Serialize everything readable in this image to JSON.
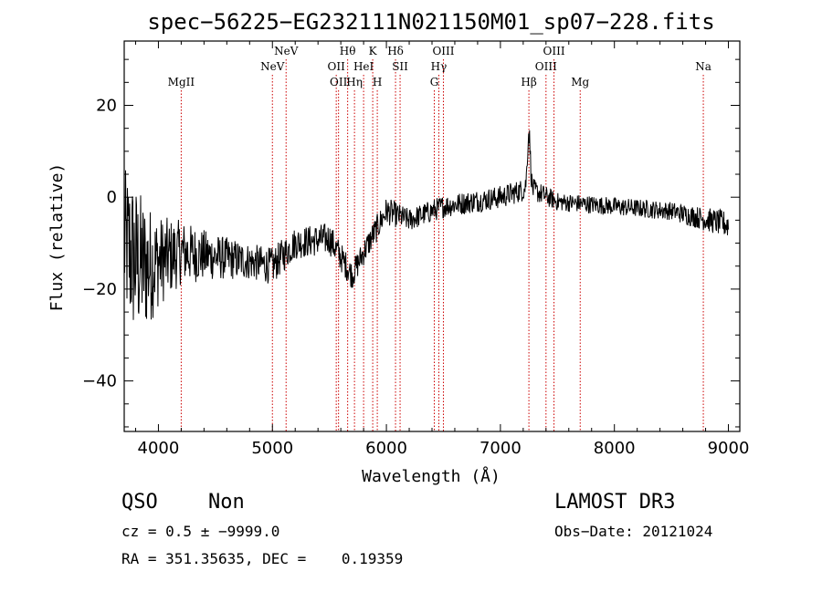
{
  "info": {
    "class": "QSO",
    "subclass": "Non",
    "survey": "LAMOST DR3",
    "cz_line": "cz = 0.5 ± −9999.0",
    "obs_date_line": "Obs−Date: 20121024",
    "coords_line": "RA = 351.35635, DEC =    0.19359"
  },
  "chart_data": {
    "type": "line",
    "title": "spec−56225−EG232111N021150M01_sp07−228.fits",
    "xlabel": "Wavelength (Å)",
    "ylabel": "Flux (relative)",
    "xlim": [
      3700,
      9100
    ],
    "ylim": [
      -51,
      34
    ],
    "xticks": [
      4000,
      5000,
      6000,
      7000,
      8000,
      9000
    ],
    "xtick_labels": [
      "4000",
      "5000",
      "6000",
      "7000",
      "8000",
      "9000"
    ],
    "yticks": [
      -40,
      -20,
      0,
      20
    ],
    "ytick_labels": [
      "−40",
      "−20",
      "0",
      "20"
    ],
    "spectrum_envelope": [
      {
        "x": 3700,
        "y": -10,
        "noise": 16
      },
      {
        "x": 3750,
        "y": -12,
        "noise": 18
      },
      {
        "x": 3800,
        "y": -14,
        "noise": 17
      },
      {
        "x": 3900,
        "y": -15,
        "noise": 14
      },
      {
        "x": 4000,
        "y": -14,
        "noise": 10
      },
      {
        "x": 4200,
        "y": -12,
        "noise": 7
      },
      {
        "x": 4500,
        "y": -13,
        "noise": 5
      },
      {
        "x": 4800,
        "y": -14,
        "noise": 4
      },
      {
        "x": 5000,
        "y": -15,
        "noise": 4
      },
      {
        "x": 5200,
        "y": -10,
        "noise": 3.5
      },
      {
        "x": 5500,
        "y": -9,
        "noise": 3.5
      },
      {
        "x": 5700,
        "y": -17,
        "noise": 3
      },
      {
        "x": 5800,
        "y": -12,
        "noise": 3
      },
      {
        "x": 6000,
        "y": -3,
        "noise": 3
      },
      {
        "x": 6200,
        "y": -5,
        "noise": 2.5
      },
      {
        "x": 6500,
        "y": -2,
        "noise": 2.5
      },
      {
        "x": 7000,
        "y": 0,
        "noise": 2.5
      },
      {
        "x": 7250,
        "y": 2,
        "noise": 2.5
      },
      {
        "x": 7500,
        "y": -1,
        "noise": 2
      },
      {
        "x": 8000,
        "y": -2,
        "noise": 2
      },
      {
        "x": 8500,
        "y": -3,
        "noise": 2
      },
      {
        "x": 9000,
        "y": -6,
        "noise": 3
      }
    ],
    "features": [
      {
        "x": 7250,
        "y": 12,
        "width": 18
      }
    ],
    "lines": [
      {
        "x": 4200,
        "label": "MgII",
        "row": 3
      },
      {
        "x": 5000,
        "label": "NeV",
        "row": 2
      },
      {
        "x": 5120,
        "label": "NeV",
        "row": 1
      },
      {
        "x": 5560,
        "label": "OII",
        "row": 2
      },
      {
        "x": 5580,
        "label": "OII",
        "row": 3
      },
      {
        "x": 5660,
        "label": "Hθ",
        "row": 1
      },
      {
        "x": 5720,
        "label": "Hη",
        "row": 3
      },
      {
        "x": 5800,
        "label": "HeI",
        "row": 2
      },
      {
        "x": 5880,
        "label": "K",
        "row": 1
      },
      {
        "x": 5920,
        "label": "H",
        "row": 3
      },
      {
        "x": 6080,
        "label": "Hδ",
        "row": 1
      },
      {
        "x": 6120,
        "label": "SII",
        "row": 2
      },
      {
        "x": 6420,
        "label": "G",
        "row": 3
      },
      {
        "x": 6460,
        "label": "Hγ",
        "row": 2
      },
      {
        "x": 6500,
        "label": "OIII",
        "row": 1
      },
      {
        "x": 7250,
        "label": "Hβ",
        "row": 3
      },
      {
        "x": 7400,
        "label": "OIII",
        "row": 2
      },
      {
        "x": 7470,
        "label": "OIII",
        "row": 1
      },
      {
        "x": 7700,
        "label": "Mg",
        "row": 3
      },
      {
        "x": 8780,
        "label": "Na",
        "row": 2
      }
    ],
    "spectrum_color": "#000000",
    "line_marker_color": "#cc0000"
  }
}
